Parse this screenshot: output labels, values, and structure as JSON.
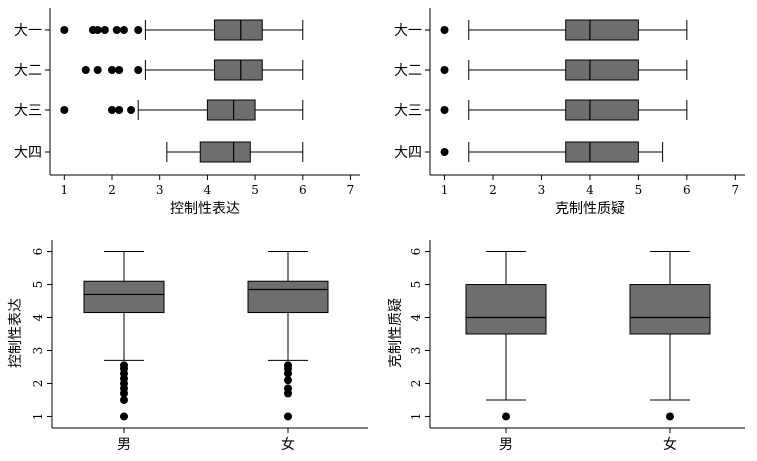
{
  "chart_data": [
    {
      "type": "boxplot",
      "orientation": "horizontal",
      "xlabel": "控制性表达",
      "xlim": [
        0.7,
        7.2
      ],
      "xticks": [
        1,
        2,
        3,
        4,
        5,
        6,
        7
      ],
      "categories": [
        "大一",
        "大二",
        "大三",
        "大四"
      ],
      "boxes": [
        {
          "category": "大一",
          "whisker_low": 2.7,
          "q1": 4.15,
          "median": 4.7,
          "q3": 5.15,
          "whisker_high": 6.0,
          "outliers": [
            1.0,
            1.6,
            1.7,
            1.85,
            2.1,
            2.25,
            2.55
          ]
        },
        {
          "category": "大二",
          "whisker_low": 2.7,
          "q1": 4.15,
          "median": 4.7,
          "q3": 5.15,
          "whisker_high": 6.0,
          "outliers": [
            1.45,
            1.7,
            2.0,
            2.15,
            2.55
          ]
        },
        {
          "category": "大三",
          "whisker_low": 2.55,
          "q1": 4.0,
          "median": 4.55,
          "q3": 5.0,
          "whisker_high": 6.0,
          "outliers": [
            1.0,
            2.0,
            2.15,
            2.4
          ]
        },
        {
          "category": "大四",
          "whisker_low": 3.15,
          "q1": 3.85,
          "median": 4.55,
          "q3": 4.9,
          "whisker_high": 6.0,
          "outliers": []
        }
      ]
    },
    {
      "type": "boxplot",
      "orientation": "horizontal",
      "xlabel": "克制性质疑",
      "xlim": [
        0.7,
        7.2
      ],
      "xticks": [
        1,
        2,
        3,
        4,
        5,
        6,
        7
      ],
      "categories": [
        "大一",
        "大二",
        "大三",
        "大四"
      ],
      "boxes": [
        {
          "category": "大一",
          "whisker_low": 1.5,
          "q1": 3.5,
          "median": 4.0,
          "q3": 5.0,
          "whisker_high": 6.0,
          "outliers": [
            1.0
          ]
        },
        {
          "category": "大二",
          "whisker_low": 1.5,
          "q1": 3.5,
          "median": 4.0,
          "q3": 5.0,
          "whisker_high": 6.0,
          "outliers": [
            1.0
          ]
        },
        {
          "category": "大三",
          "whisker_low": 1.5,
          "q1": 3.5,
          "median": 4.0,
          "q3": 5.0,
          "whisker_high": 6.0,
          "outliers": [
            1.0
          ]
        },
        {
          "category": "大四",
          "whisker_low": 1.5,
          "q1": 3.5,
          "median": 4.0,
          "q3": 5.0,
          "whisker_high": 5.5,
          "outliers": [
            1.0
          ]
        }
      ]
    },
    {
      "type": "boxplot",
      "orientation": "vertical",
      "ylabel": "控制性表达",
      "ylim": [
        0.65,
        6.35
      ],
      "yticks": [
        1,
        2,
        3,
        4,
        5,
        6
      ],
      "categories": [
        "男",
        "女"
      ],
      "boxes": [
        {
          "category": "男",
          "whisker_low": 2.7,
          "q1": 4.15,
          "median": 4.7,
          "q3": 5.1,
          "whisker_high": 6.0,
          "outliers": [
            1.0,
            1.5,
            1.7,
            1.85,
            2.0,
            2.15,
            2.3,
            2.45,
            2.55
          ]
        },
        {
          "category": "女",
          "whisker_low": 2.7,
          "q1": 4.15,
          "median": 4.85,
          "q3": 5.1,
          "whisker_high": 6.0,
          "outliers": [
            1.0,
            1.7,
            1.85,
            2.1,
            2.3,
            2.45,
            2.55
          ]
        }
      ]
    },
    {
      "type": "boxplot",
      "orientation": "vertical",
      "ylabel": "克制性质疑",
      "ylim": [
        0.65,
        6.35
      ],
      "yticks": [
        1,
        2,
        3,
        4,
        5,
        6
      ],
      "categories": [
        "男",
        "女"
      ],
      "boxes": [
        {
          "category": "男",
          "whisker_low": 1.5,
          "q1": 3.5,
          "median": 4.0,
          "q3": 5.0,
          "whisker_high": 6.0,
          "outliers": [
            1.0
          ]
        },
        {
          "category": "女",
          "whisker_low": 1.5,
          "q1": 3.5,
          "median": 4.0,
          "q3": 5.0,
          "whisker_high": 6.0,
          "outliers": [
            1.0
          ]
        }
      ]
    }
  ]
}
